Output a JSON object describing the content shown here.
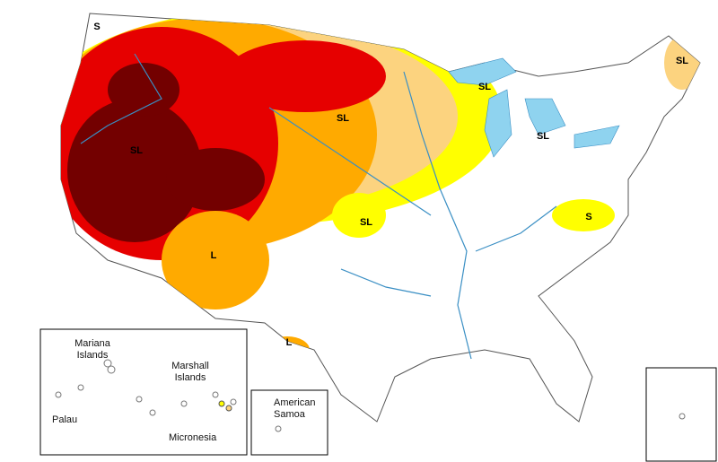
{
  "impact_labels": [
    "S",
    "SL",
    "SL",
    "SL",
    "SL",
    "SL",
    "SL",
    "S",
    "L",
    "L"
  ],
  "pacific_inset": {
    "mariana": [
      "Mariana",
      "Islands"
    ],
    "marshall": [
      "Marshall",
      "Islands"
    ],
    "palau": "Palau",
    "micronesia": "Micronesia"
  },
  "samoa_inset": {
    "label": [
      "American",
      "Samoa"
    ]
  }
}
